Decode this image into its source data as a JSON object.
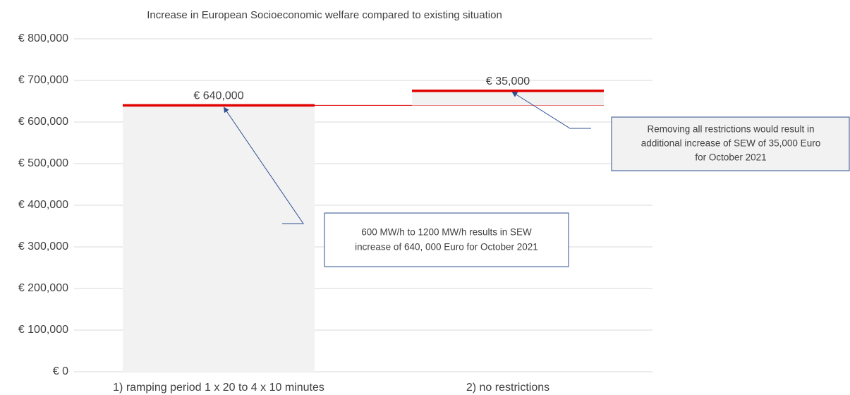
{
  "chart_data": {
    "type": "waterfall",
    "title": "Increase in European Socioeconomic welfare compared to existing situation",
    "categories": [
      "1) ramping period 1 x 20 to 4 x 10 minutes",
      "2) no restrictions"
    ],
    "values": [
      640000,
      35000
    ],
    "value_labels": [
      "€ 640,000",
      "€ 35,000"
    ],
    "color": "#f2f2f2",
    "line_color": "#e00000",
    "ylim": [
      0,
      800000
    ],
    "yticks": [
      {
        "value": 0,
        "label": "€ 0"
      },
      {
        "value": 100000,
        "label": "€ 100,000"
      },
      {
        "value": 200000,
        "label": "€ 200,000"
      },
      {
        "value": 300000,
        "label": "€ 300,000"
      },
      {
        "value": 400000,
        "label": "€ 400,000"
      },
      {
        "value": 500000,
        "label": "€ 500,000"
      },
      {
        "value": 600000,
        "label": "€ 600,000"
      },
      {
        "value": 700000,
        "label": "€ 700,000"
      },
      {
        "value": 800000,
        "label": "€ 800,000"
      }
    ],
    "grid": true,
    "annotations": [
      {
        "lines": [
          "600 MW/h to 1200 MW/h results in SEW",
          "increase of 640, 000 Euro for October 2021"
        ]
      },
      {
        "lines": [
          "Removing all restrictions would result in",
          "additional increase of SEW of 35,000 Euro",
          "for October 2021"
        ]
      }
    ]
  }
}
